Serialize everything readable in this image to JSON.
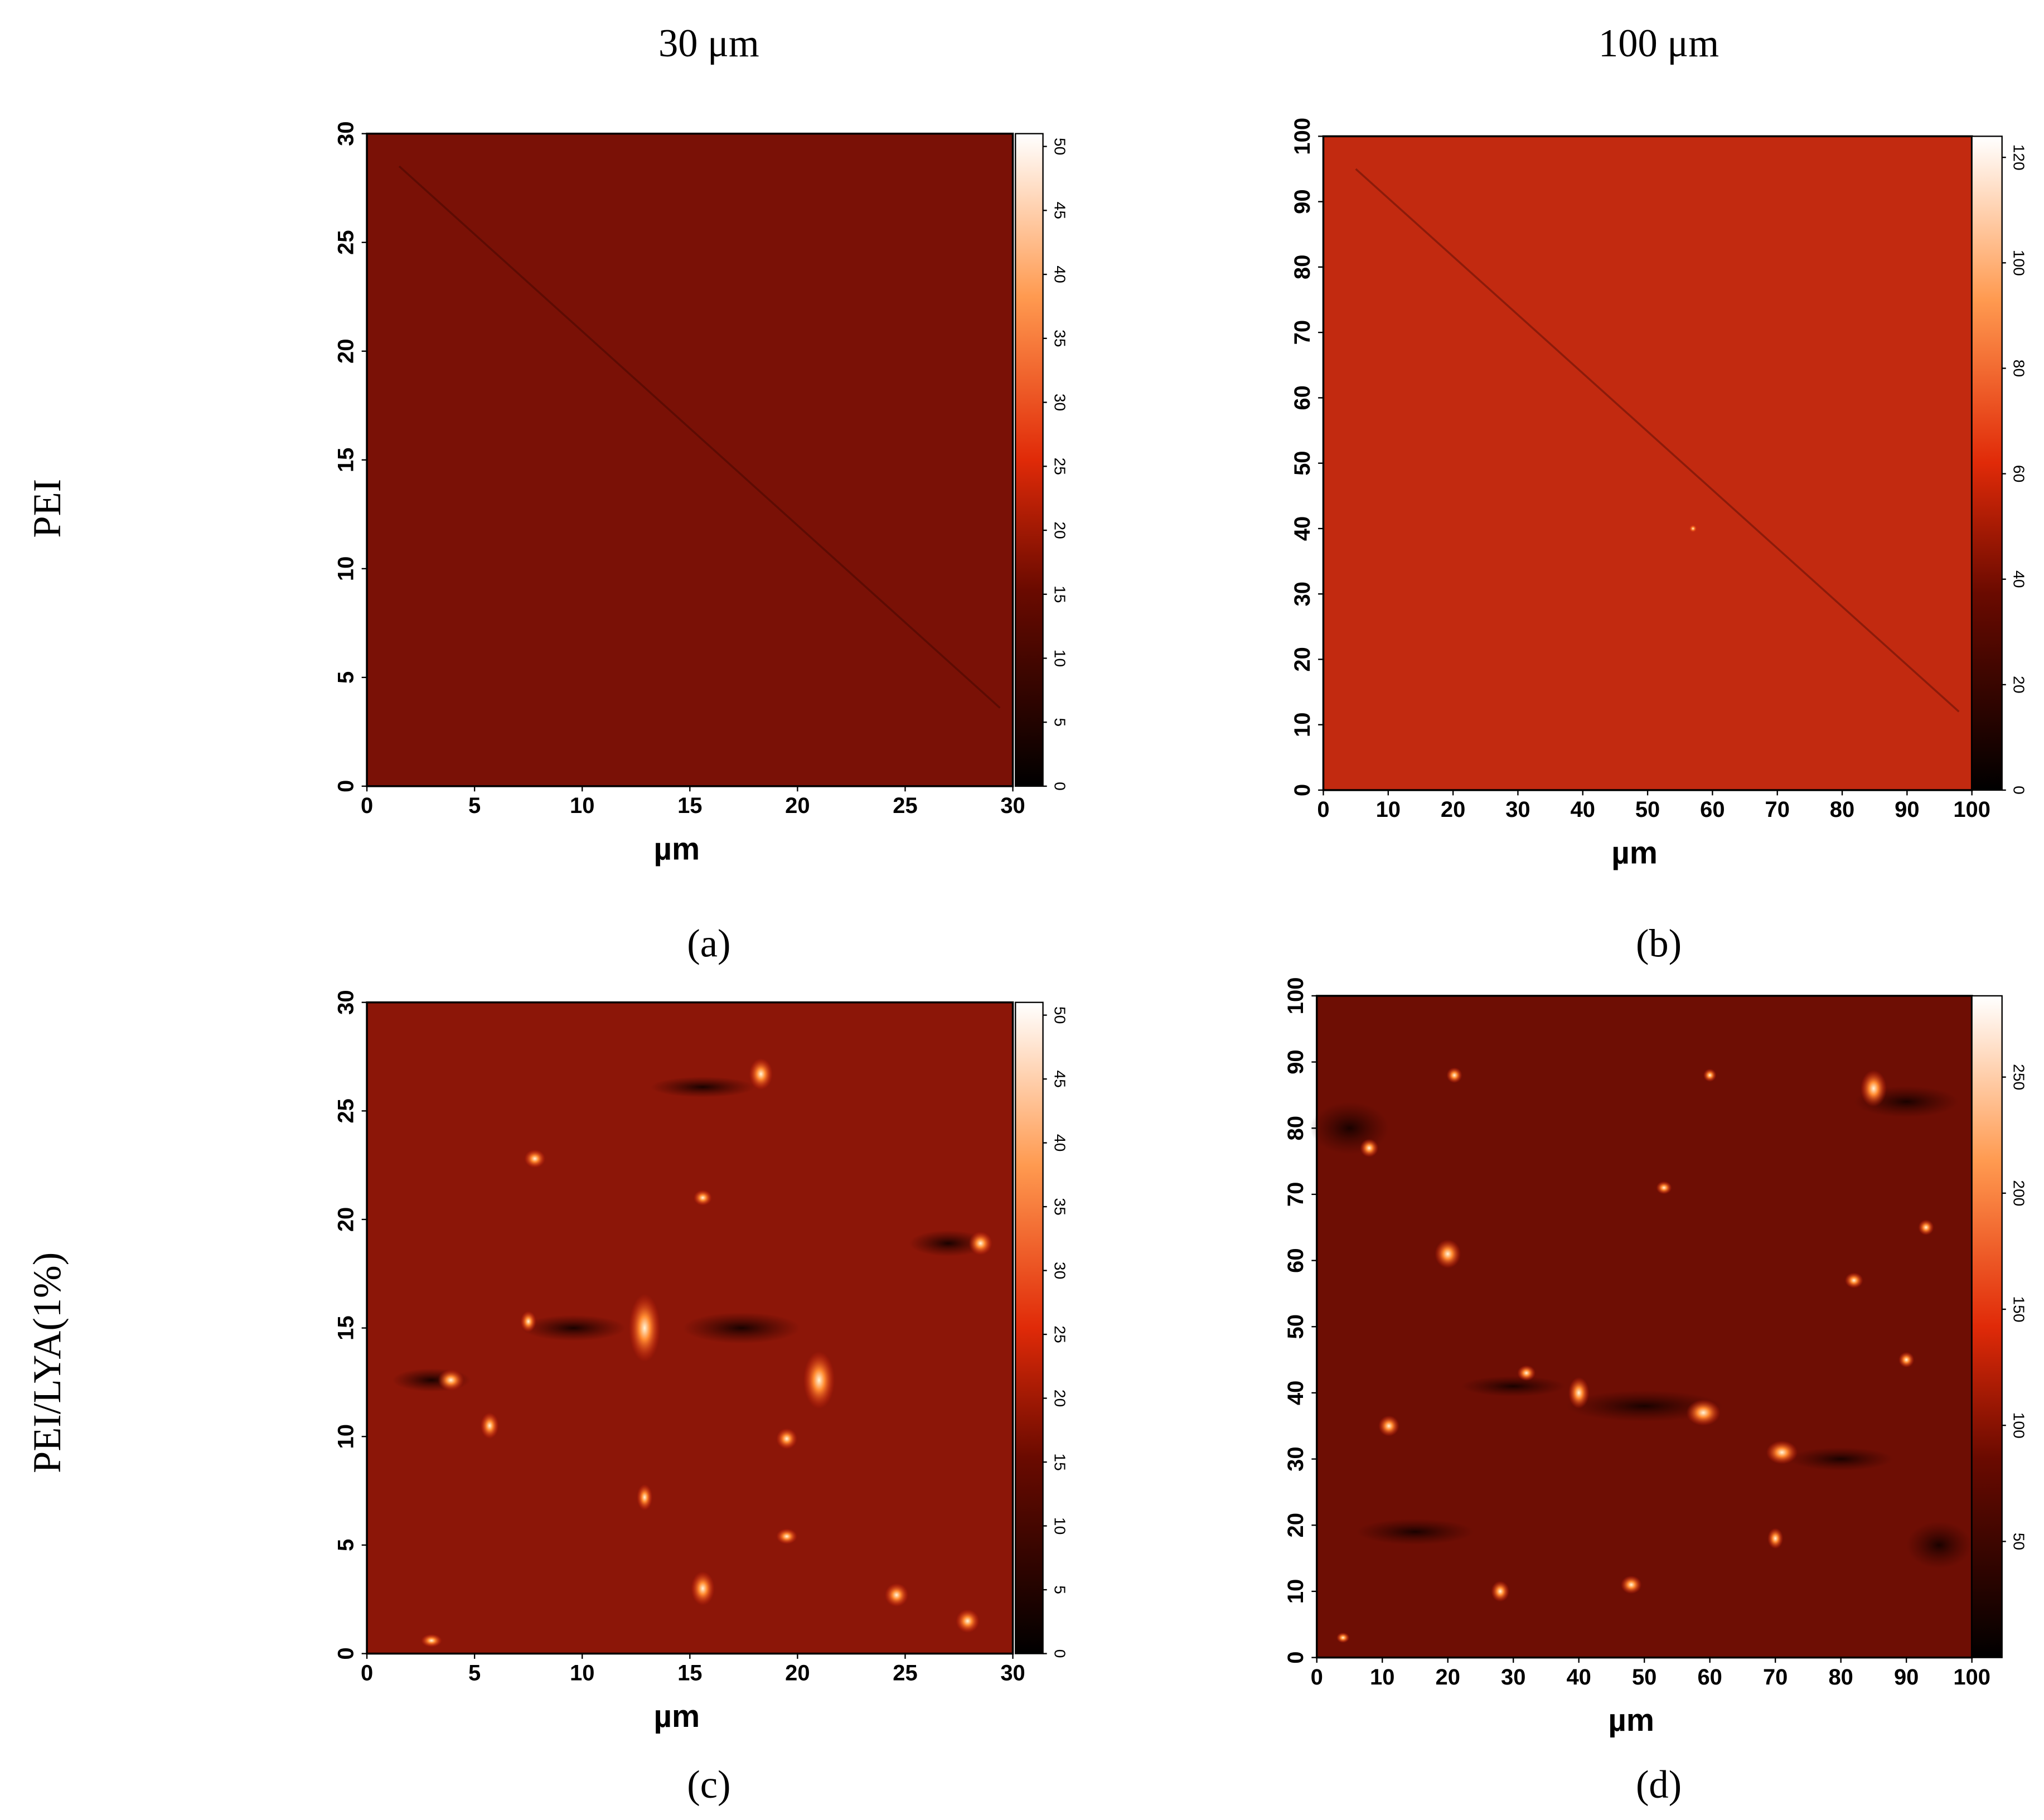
{
  "column_titles": [
    "30 μm",
    "100 μm"
  ],
  "row_titles": [
    "PEI",
    "PEI/LYA(1%)"
  ],
  "panels": [
    {
      "caption": "(a)",
      "x_label": "µm",
      "xlim": [
        0,
        30
      ],
      "ylim": [
        0,
        30
      ],
      "xticks": [
        0,
        5,
        10,
        15,
        20,
        25,
        30
      ],
      "yticks": [
        0,
        5,
        10,
        15,
        20,
        25,
        30
      ],
      "colorbar_lim": [
        0,
        51
      ],
      "colorbar_ticks": [
        0,
        5,
        10,
        15,
        20,
        25,
        30,
        35,
        40,
        45,
        50
      ]
    },
    {
      "caption": "(b)",
      "x_label": "µm",
      "xlim": [
        0,
        100
      ],
      "ylim": [
        0,
        100
      ],
      "xticks": [
        0,
        10,
        20,
        30,
        40,
        50,
        60,
        70,
        80,
        90,
        100
      ],
      "yticks": [
        0,
        10,
        20,
        30,
        40,
        50,
        60,
        70,
        80,
        90,
        100
      ],
      "colorbar_lim": [
        0,
        124
      ],
      "colorbar_ticks": [
        0,
        20,
        40,
        60,
        80,
        100,
        120
      ]
    },
    {
      "caption": "(c)",
      "x_label": "µm",
      "xlim": [
        0,
        30
      ],
      "ylim": [
        0,
        30
      ],
      "xticks": [
        0,
        5,
        10,
        15,
        20,
        25,
        30
      ],
      "yticks": [
        0,
        5,
        10,
        15,
        20,
        25,
        30
      ],
      "colorbar_lim": [
        0,
        51
      ],
      "colorbar_ticks": [
        0,
        5,
        10,
        15,
        20,
        25,
        30,
        35,
        40,
        45,
        50
      ]
    },
    {
      "caption": "(d)",
      "x_label": "µm",
      "xlim": [
        0,
        100
      ],
      "ylim": [
        0,
        100
      ],
      "xticks": [
        0,
        10,
        20,
        30,
        40,
        50,
        60,
        70,
        80,
        90,
        100
      ],
      "yticks": [
        0,
        10,
        20,
        30,
        40,
        50,
        60,
        70,
        80,
        90,
        100
      ],
      "colorbar_lim": [
        0,
        285
      ],
      "colorbar_ticks": [
        50,
        100,
        150,
        200,
        250
      ]
    }
  ]
}
